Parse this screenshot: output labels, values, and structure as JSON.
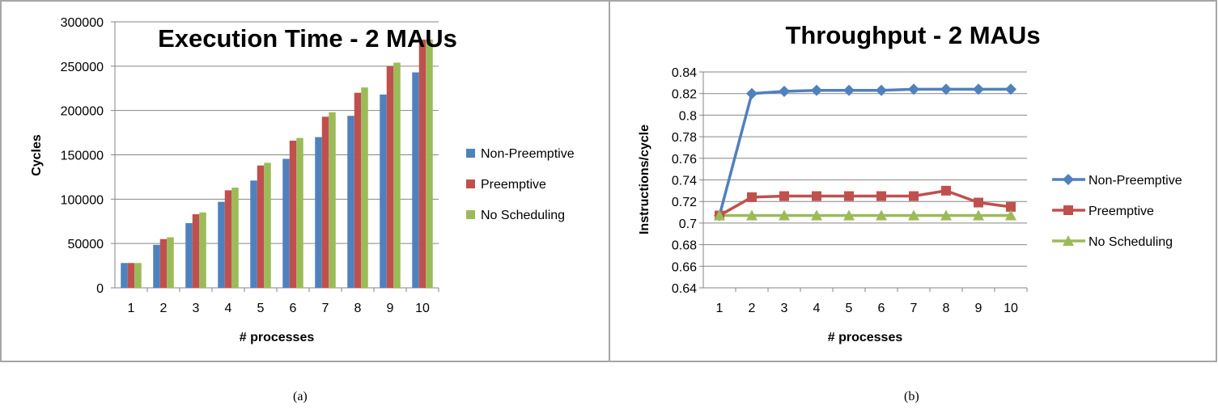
{
  "chart_data": [
    {
      "type": "bar",
      "title": "Execution Time - 2 MAUs",
      "xlabel": "# processes",
      "ylabel": "Cycles",
      "ylim": [
        0,
        300000
      ],
      "yticks": [
        0,
        50000,
        100000,
        150000,
        200000,
        250000,
        300000
      ],
      "ytick_labels": [
        "0",
        "50000",
        "100000",
        "150000",
        "200000",
        "250000",
        "300000"
      ],
      "categories": [
        "1",
        "2",
        "3",
        "4",
        "5",
        "6",
        "7",
        "8",
        "9",
        "10"
      ],
      "grid": true,
      "legend": "right",
      "series": [
        {
          "name": "Non-Preemptive",
          "color": "#4f81bd",
          "values": [
            28000,
            48500,
            73000,
            97000,
            121000,
            145500,
            170000,
            194000,
            218000,
            243000
          ]
        },
        {
          "name": "Preemptive",
          "color": "#c0504d",
          "values": [
            28000,
            55000,
            83000,
            110000,
            138000,
            166000,
            193000,
            220000,
            250000,
            280000
          ]
        },
        {
          "name": "No Scheduling",
          "color": "#9bbb59",
          "values": [
            28000,
            57000,
            85000,
            113000,
            141000,
            169000,
            198000,
            226000,
            254000,
            280000
          ]
        }
      ]
    },
    {
      "type": "line",
      "title": "Throughput - 2 MAUs",
      "xlabel": "# processes",
      "ylabel": "Instructions/cycle",
      "ylim": [
        0.64,
        0.84
      ],
      "yticks": [
        0.64,
        0.66,
        0.68,
        0.7,
        0.72,
        0.74,
        0.76,
        0.78,
        0.8,
        0.82,
        0.84
      ],
      "ytick_labels": [
        "0.64",
        "0.66",
        "0.68",
        "0.7",
        "0.72",
        "0.74",
        "0.76",
        "0.78",
        "0.8",
        "0.82",
        "0.84"
      ],
      "categories": [
        "1",
        "2",
        "3",
        "4",
        "5",
        "6",
        "7",
        "8",
        "9",
        "10"
      ],
      "grid": true,
      "legend": "right",
      "series": [
        {
          "name": "Non-Preemptive",
          "color": "#4f81bd",
          "marker": "diamond",
          "values": [
            0.707,
            0.82,
            0.822,
            0.823,
            0.823,
            0.823,
            0.824,
            0.824,
            0.824,
            0.824
          ]
        },
        {
          "name": "Preemptive",
          "color": "#c0504d",
          "marker": "square",
          "values": [
            0.707,
            0.724,
            0.725,
            0.725,
            0.725,
            0.725,
            0.725,
            0.73,
            0.719,
            0.715
          ]
        },
        {
          "name": "No Scheduling",
          "color": "#9bbb59",
          "marker": "triangle",
          "values": [
            0.707,
            0.707,
            0.707,
            0.707,
            0.707,
            0.707,
            0.707,
            0.707,
            0.707,
            0.707
          ]
        }
      ]
    }
  ],
  "captions": {
    "a": "(a)",
    "b": "(b)"
  }
}
